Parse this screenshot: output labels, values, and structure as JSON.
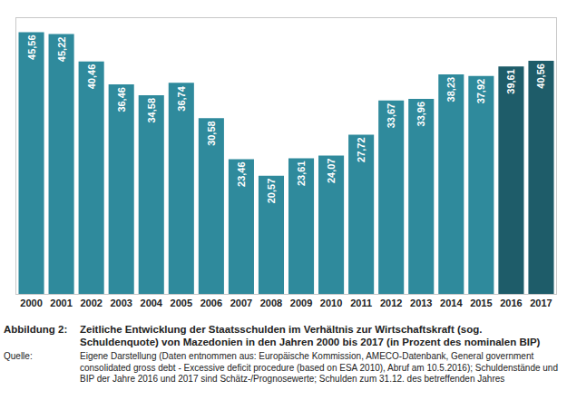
{
  "chart_data": {
    "type": "bar",
    "categories": [
      "2000",
      "2001",
      "2002",
      "2003",
      "2004",
      "2005",
      "2006",
      "2007",
      "2008",
      "2009",
      "2010",
      "2011",
      "2012",
      "2013",
      "2014",
      "2015",
      "2016",
      "2017"
    ],
    "values": [
      45.56,
      45.22,
      40.46,
      36.46,
      34.58,
      36.74,
      30.58,
      23.46,
      20.57,
      23.61,
      24.07,
      27.72,
      33.67,
      33.96,
      38.23,
      37.92,
      39.61,
      40.56
    ],
    "value_labels": [
      "45,56",
      "45,22",
      "40,46",
      "36,46",
      "34,58",
      "36,74",
      "30,58",
      "23,46",
      "20,57",
      "23,61",
      "24,07",
      "27,72",
      "33,67",
      "33,96",
      "38,23",
      "37,92",
      "39,61",
      "40,56"
    ],
    "colors": [
      "#2f8a9c",
      "#2f8a9c",
      "#2f8a9c",
      "#2f8a9c",
      "#2f8a9c",
      "#2f8a9c",
      "#2f8a9c",
      "#2f8a9c",
      "#2f8a9c",
      "#2f8a9c",
      "#2f8a9c",
      "#2f8a9c",
      "#2f8a9c",
      "#2f8a9c",
      "#2f8a9c",
      "#2f8a9c",
      "#1e5c69",
      "#1e5c69"
    ],
    "ylim": [
      0,
      48
    ],
    "yticks": [],
    "grid": false,
    "data_labels": true,
    "tick_labels": "x"
  },
  "caption": {
    "label": "Abbildung 2:",
    "text": "Zeitliche Entwicklung der Staatsschulden im Verhältnis zur Wirtschaftskraft (sog. Schuldenquote) von Mazedonien in den Jahren 2000 bis 2017 (in Prozent des nominalen BIP)",
    "source_label": "Quelle:",
    "source": "Eigene Darstellung (Daten entnommen aus: Europäische Kommission, AMECO-Datenbank, General government consolidated gross debt - Excessive deficit procedure (based on ESA 2010), Abruf am 10.5.2016); Schuldenstände und BIP der Jahre 2016 und 2017 sind Schätz-/Prognosewerte; Schulden zum 31.12. des betreffenden Jahres"
  }
}
